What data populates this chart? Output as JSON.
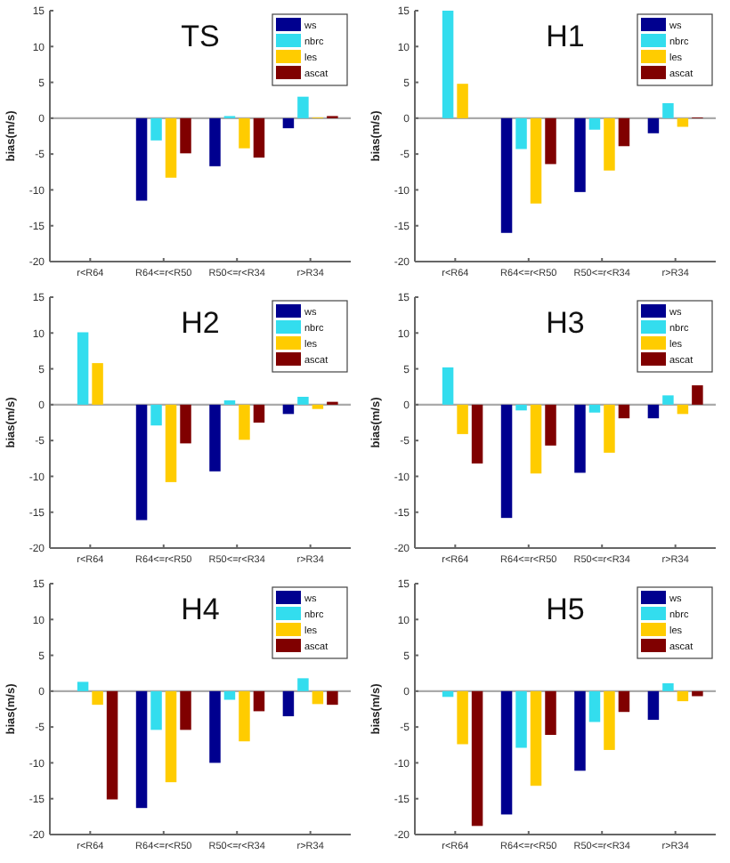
{
  "chart_data": [
    {
      "type": "bar",
      "title": "TS",
      "ylabel": "bias(m/s)",
      "categories": [
        "r<R64",
        "R64<=r<R50",
        "R50<=r<R34",
        "r>R34"
      ],
      "ylim": [
        -20,
        15
      ],
      "yticks": [
        -20,
        -15,
        -10,
        -5,
        0,
        5,
        10,
        15
      ],
      "legend": "top right",
      "series": [
        {
          "name": "ws",
          "color": "#00008f",
          "values": [
            null,
            -11.5,
            -6.7,
            -1.4
          ]
        },
        {
          "name": "nbrc",
          "color": "#33ddee",
          "values": [
            null,
            -3.1,
            0.3,
            3.0
          ]
        },
        {
          "name": "les",
          "color": "#ffcc00",
          "values": [
            null,
            -8.3,
            -4.2,
            0.1
          ]
        },
        {
          "name": "ascat",
          "color": "#800000",
          "values": [
            null,
            -4.9,
            -5.5,
            0.3
          ]
        }
      ]
    },
    {
      "type": "bar",
      "title": "H1",
      "ylabel": "bias(m/s)",
      "categories": [
        "r<R64",
        "R64<=r<R50",
        "R50<=r<R34",
        "r>R34"
      ],
      "ylim": [
        -20,
        15
      ],
      "yticks": [
        -20,
        -15,
        -10,
        -5,
        0,
        5,
        10,
        15
      ],
      "legend": "top right",
      "series": [
        {
          "name": "ws",
          "color": "#00008f",
          "values": [
            null,
            -16,
            -10.3,
            -2.1
          ]
        },
        {
          "name": "nbrc",
          "color": "#33ddee",
          "values": [
            15,
            -4.3,
            -1.6,
            2.1
          ]
        },
        {
          "name": "les",
          "color": "#ffcc00",
          "values": [
            4.8,
            -11.9,
            -7.3,
            -1.2
          ]
        },
        {
          "name": "ascat",
          "color": "#800000",
          "values": [
            null,
            -6.4,
            -3.9,
            0.1
          ]
        }
      ]
    },
    {
      "type": "bar",
      "title": "H2",
      "ylabel": "bias(m/s)",
      "categories": [
        "r<R64",
        "R64<=r<R50",
        "R50<=r<R34",
        "r>R34"
      ],
      "ylim": [
        -20,
        15
      ],
      "yticks": [
        -20,
        -15,
        -10,
        -5,
        0,
        5,
        10,
        15
      ],
      "legend": "top right",
      "series": [
        {
          "name": "ws",
          "color": "#00008f",
          "values": [
            null,
            -16.1,
            -9.3,
            -1.3
          ]
        },
        {
          "name": "nbrc",
          "color": "#33ddee",
          "values": [
            10.1,
            -2.9,
            0.6,
            1.1
          ]
        },
        {
          "name": "les",
          "color": "#ffcc00",
          "values": [
            5.8,
            -10.8,
            -4.9,
            -0.6
          ]
        },
        {
          "name": "ascat",
          "color": "#800000",
          "values": [
            null,
            -5.4,
            -2.5,
            0.4
          ]
        }
      ]
    },
    {
      "type": "bar",
      "title": "H3",
      "ylabel": "bias(m/s)",
      "categories": [
        "r<R64",
        "R64<=r<R50",
        "R50<=r<R34",
        "r>R34"
      ],
      "ylim": [
        -20,
        15
      ],
      "yticks": [
        -20,
        -15,
        -10,
        -5,
        0,
        5,
        10,
        15
      ],
      "legend": "top right",
      "series": [
        {
          "name": "ws",
          "color": "#00008f",
          "values": [
            null,
            -15.8,
            -9.5,
            -1.9
          ]
        },
        {
          "name": "nbrc",
          "color": "#33ddee",
          "values": [
            5.2,
            -0.8,
            -1.1,
            1.3
          ]
        },
        {
          "name": "les",
          "color": "#ffcc00",
          "values": [
            -4.1,
            -9.6,
            -6.7,
            -1.3
          ]
        },
        {
          "name": "ascat",
          "color": "#800000",
          "values": [
            -8.2,
            -5.7,
            -1.9,
            2.7
          ]
        }
      ]
    },
    {
      "type": "bar",
      "title": "H4",
      "ylabel": "bias(m/s)",
      "categories": [
        "r<R64",
        "R64<=r<R50",
        "R50<=r<R34",
        "r>R34"
      ],
      "ylim": [
        -20,
        15
      ],
      "yticks": [
        -20,
        -15,
        -10,
        -5,
        0,
        5,
        10,
        15
      ],
      "legend": "top right",
      "series": [
        {
          "name": "ws",
          "color": "#00008f",
          "values": [
            null,
            -16.3,
            -10,
            -3.5
          ]
        },
        {
          "name": "nbrc",
          "color": "#33ddee",
          "values": [
            1.3,
            -5.4,
            -1.2,
            1.8
          ]
        },
        {
          "name": "les",
          "color": "#ffcc00",
          "values": [
            -1.9,
            -12.7,
            -7,
            -1.8
          ]
        },
        {
          "name": "ascat",
          "color": "#800000",
          "values": [
            -15.1,
            -5.4,
            -2.8,
            -1.9
          ]
        }
      ]
    },
    {
      "type": "bar",
      "title": "H5",
      "ylabel": "bias(m/s)",
      "categories": [
        "r<R64",
        "R64<=r<R50",
        "R50<=r<R34",
        "r>R34"
      ],
      "ylim": [
        -20,
        15
      ],
      "yticks": [
        -20,
        -15,
        -10,
        -5,
        0,
        5,
        10,
        15
      ],
      "legend": "top right",
      "series": [
        {
          "name": "ws",
          "color": "#00008f",
          "values": [
            null,
            -17.2,
            -11.1,
            -4
          ]
        },
        {
          "name": "nbrc",
          "color": "#33ddee",
          "values": [
            -0.8,
            -7.9,
            -4.3,
            1.1
          ]
        },
        {
          "name": "les",
          "color": "#ffcc00",
          "values": [
            -7.4,
            -13.2,
            -8.2,
            -1.4
          ]
        },
        {
          "name": "ascat",
          "color": "#800000",
          "values": [
            -18.8,
            -6.1,
            -2.9,
            -0.7
          ]
        }
      ]
    }
  ]
}
